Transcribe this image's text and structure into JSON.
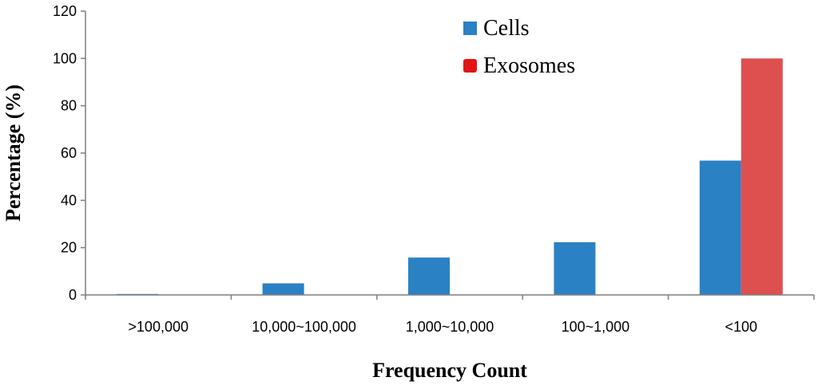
{
  "chart_data": {
    "type": "bar",
    "title": "",
    "xlabel": "Frequency Count",
    "ylabel": "Percentage (%)",
    "ylim": [
      0,
      120
    ],
    "yticks": [
      0,
      20,
      40,
      60,
      80,
      100,
      120
    ],
    "grid": false,
    "legend_position": "top-right",
    "categories": [
      ">100,000",
      "10,000~100,000",
      "1,000~10,000",
      "100~1,000",
      "<100"
    ],
    "series": [
      {
        "name": "Cells",
        "color": "#2A81C4",
        "values": [
          0.4,
          4.9,
          15.8,
          22.3,
          56.8
        ]
      },
      {
        "name": "Exosomes",
        "color": "#DE504F",
        "values": [
          0,
          0,
          0,
          0,
          100
        ]
      }
    ],
    "legend_swatch_colors": [
      "#2A81C4",
      "#E31414"
    ]
  }
}
